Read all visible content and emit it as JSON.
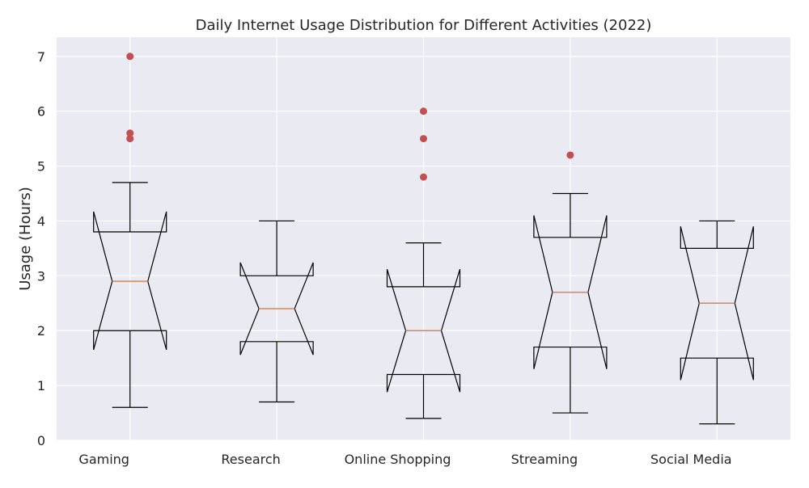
{
  "chart_data": {
    "type": "box",
    "title": "Daily Internet Usage Distribution for Different Activities (2022)",
    "xlabel": "",
    "ylabel": "Usage (Hours)",
    "ylim": [
      0,
      7.35
    ],
    "yticks": [
      0,
      1,
      2,
      3,
      4,
      5,
      6,
      7
    ],
    "grid": true,
    "notched": true,
    "categories": [
      "Gaming",
      "Research",
      "Online Shopping",
      "Streaming",
      "Social Media"
    ],
    "boxes": [
      {
        "category": "Gaming",
        "whisker_low": 0.6,
        "q1": 2.0,
        "median": 2.9,
        "q3": 3.8,
        "whisker_high": 4.7,
        "notch_low": 1.65,
        "notch_high": 4.17,
        "outliers": [
          5.5,
          5.6,
          7.0
        ]
      },
      {
        "category": "Research",
        "whisker_low": 0.7,
        "q1": 1.8,
        "median": 2.4,
        "q3": 3.0,
        "whisker_high": 4.0,
        "notch_low": 1.56,
        "notch_high": 3.24,
        "outliers": []
      },
      {
        "category": "Online Shopping",
        "whisker_low": 0.4,
        "q1": 1.2,
        "median": 2.0,
        "q3": 2.8,
        "whisker_high": 3.6,
        "notch_low": 0.88,
        "notch_high": 3.12,
        "outliers": [
          4.8,
          5.5,
          6.0
        ]
      },
      {
        "category": "Streaming",
        "whisker_low": 0.5,
        "q1": 1.7,
        "median": 2.7,
        "q3": 3.7,
        "whisker_high": 4.5,
        "notch_low": 1.3,
        "notch_high": 4.1,
        "outliers": [
          5.2
        ]
      },
      {
        "category": "Social Media",
        "whisker_low": 0.3,
        "q1": 1.5,
        "median": 2.5,
        "q3": 3.5,
        "whisker_high": 4.0,
        "notch_low": 1.1,
        "notch_high": 3.9,
        "outliers": []
      }
    ],
    "colors": {
      "plot_background": "#EAEAF2",
      "grid": "#FFFFFF",
      "box_edge": "#000000",
      "median": "#DD8452",
      "outlier": "#C44E52"
    }
  }
}
